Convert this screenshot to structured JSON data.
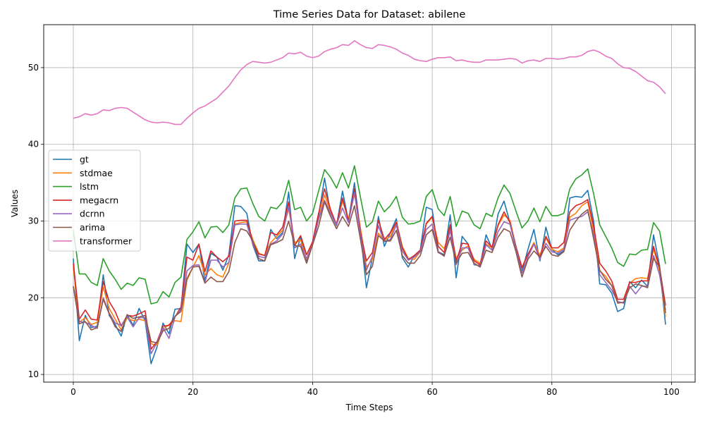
{
  "chart_data": {
    "type": "line",
    "title": "Time Series Data for Dataset: abilene",
    "xlabel": "Time Steps",
    "ylabel": "Values",
    "xlim": [
      -4.95,
      103.95
    ],
    "ylim": [
      9.0,
      55.6
    ],
    "xticks": [
      0,
      20,
      40,
      60,
      80,
      100
    ],
    "yticks": [
      10,
      20,
      30,
      40,
      50
    ],
    "grid": true,
    "legend_position": "center-left",
    "series": [
      {
        "name": "gt",
        "color": "#1f77b4",
        "values": [
          25.1,
          14.4,
          17.7,
          16.1,
          16.3,
          23.0,
          17.7,
          16.5,
          15.0,
          17.8,
          16.4,
          18.6,
          17.0,
          11.4,
          13.6,
          16.7,
          15.3,
          18.5,
          18.6,
          27.0,
          25.9,
          27.0,
          22.2,
          25.8,
          25.3,
          23.6,
          25.6,
          32.0,
          31.9,
          31.0,
          26.9,
          24.8,
          24.8,
          28.9,
          27.7,
          28.5,
          33.8,
          25.1,
          28.0,
          24.8,
          27.3,
          30.7,
          35.6,
          31.0,
          29.4,
          33.9,
          30.0,
          35.0,
          28.5,
          21.3,
          25.2,
          30.6,
          26.7,
          28.5,
          30.3,
          25.2,
          24.0,
          25.5,
          26.2,
          31.8,
          31.5,
          26.0,
          25.6,
          30.8,
          22.6,
          28.0,
          27.0,
          24.3,
          24.2,
          28.2,
          26.4,
          30.9,
          32.6,
          29.8,
          26.3,
          23.4,
          26.3,
          28.9,
          24.8,
          29.2,
          26.3,
          25.6,
          26.1,
          33.0,
          33.2,
          33.1,
          34.0,
          29.9,
          21.8,
          21.7,
          20.6,
          18.2,
          18.6,
          22.1,
          21.3,
          22.3,
          21.5,
          28.2,
          24.2,
          16.5
        ]
      },
      {
        "name": "stdmae",
        "color": "#ff7f0e",
        "values": [
          24.0,
          16.8,
          17.4,
          16.5,
          16.8,
          21.4,
          18.6,
          17.2,
          15.8,
          17.4,
          17.0,
          17.2,
          17.0,
          14.0,
          13.8,
          15.9,
          16.5,
          17.0,
          16.9,
          22.3,
          24.0,
          25.5,
          23.0,
          23.8,
          23.0,
          22.7,
          24.5,
          29.6,
          29.8,
          29.9,
          27.6,
          25.8,
          25.5,
          27.2,
          28.0,
          28.8,
          31.6,
          27.2,
          27.5,
          25.0,
          27.1,
          30.2,
          33.4,
          31.2,
          29.6,
          32.6,
          30.3,
          33.5,
          29.1,
          24.0,
          25.0,
          28.4,
          27.5,
          28.0,
          29.9,
          26.7,
          25.1,
          25.0,
          26.0,
          29.6,
          30.5,
          27.2,
          26.4,
          29.2,
          25.1,
          26.2,
          26.8,
          25.0,
          24.5,
          27.0,
          26.5,
          29.4,
          30.8,
          30.1,
          26.6,
          24.0,
          25.6,
          27.2,
          25.5,
          27.8,
          26.3,
          26.0,
          26.5,
          30.5,
          31.0,
          32.0,
          32.5,
          28.7,
          23.5,
          22.8,
          21.6,
          19.5,
          19.3,
          21.9,
          22.5,
          22.6,
          22.5,
          26.4,
          23.5,
          17.5
        ]
      },
      {
        "name": "lstm",
        "color": "#2ca02c",
        "values": [
          28.8,
          23.1,
          23.1,
          22.0,
          21.6,
          25.1,
          23.5,
          22.4,
          21.1,
          21.9,
          21.6,
          22.6,
          22.4,
          19.2,
          19.4,
          20.8,
          20.1,
          22.0,
          22.7,
          27.6,
          28.6,
          29.9,
          27.8,
          29.2,
          29.3,
          28.5,
          29.5,
          33.0,
          34.2,
          34.3,
          32.3,
          30.6,
          30.0,
          31.8,
          31.6,
          32.5,
          35.3,
          31.5,
          31.8,
          30.0,
          31.0,
          33.9,
          36.7,
          35.7,
          34.3,
          36.3,
          34.3,
          37.2,
          33.1,
          29.2,
          29.9,
          32.6,
          31.2,
          32.0,
          33.2,
          30.5,
          29.6,
          29.7,
          30.0,
          33.2,
          34.1,
          31.6,
          30.7,
          33.2,
          29.3,
          31.3,
          31.0,
          29.5,
          29.0,
          31.0,
          30.6,
          33.0,
          34.7,
          33.6,
          31.3,
          29.1,
          30.0,
          31.7,
          29.9,
          31.9,
          30.7,
          30.7,
          31.0,
          34.2,
          35.5,
          36.0,
          36.8,
          33.5,
          29.5,
          28.0,
          26.5,
          24.6,
          24.1,
          25.7,
          25.6,
          26.2,
          26.3,
          29.8,
          28.7,
          24.4
        ]
      },
      {
        "name": "megacrn",
        "color": "#d62728",
        "values": [
          24.5,
          17.2,
          18.4,
          17.2,
          17.1,
          22.1,
          19.5,
          18.2,
          16.3,
          17.7,
          17.6,
          17.9,
          18.3,
          13.3,
          14.3,
          16.3,
          16.4,
          17.5,
          18.8,
          25.3,
          24.9,
          27.0,
          23.4,
          26.1,
          25.3,
          24.7,
          25.4,
          30.0,
          30.1,
          30.1,
          27.3,
          25.7,
          25.5,
          28.5,
          28.2,
          29.2,
          32.5,
          26.8,
          28.1,
          25.6,
          27.3,
          31.0,
          34.2,
          31.5,
          29.5,
          33.0,
          30.0,
          34.2,
          28.6,
          24.8,
          25.9,
          30.1,
          27.6,
          28.5,
          29.8,
          26.5,
          25.0,
          25.5,
          26.2,
          29.7,
          30.6,
          26.7,
          25.9,
          29.5,
          24.8,
          27.1,
          27.0,
          24.8,
          24.3,
          27.4,
          26.6,
          29.5,
          31.2,
          29.8,
          26.7,
          23.9,
          25.7,
          27.0,
          25.2,
          28.0,
          26.5,
          26.5,
          27.2,
          31.2,
          32.0,
          32.3,
          32.8,
          29.3,
          24.5,
          23.5,
          22.2,
          19.8,
          19.8,
          22.0,
          22.0,
          22.2,
          22.2,
          26.7,
          24.0,
          19.0
        ]
      },
      {
        "name": "dcrnn",
        "color": "#9467bd",
        "values": [
          21.5,
          16.9,
          16.8,
          16.4,
          16.0,
          20.0,
          18.0,
          16.7,
          16.4,
          17.5,
          16.2,
          17.4,
          17.4,
          12.7,
          14.2,
          16.1,
          14.7,
          17.5,
          18.5,
          23.5,
          24.2,
          24.3,
          22.0,
          24.9,
          24.9,
          24.0,
          24.6,
          29.5,
          29.6,
          29.6,
          27.0,
          25.4,
          25.2,
          27.0,
          27.4,
          28.3,
          32.0,
          26.5,
          27.0,
          25.1,
          26.9,
          30.2,
          32.7,
          31.0,
          29.5,
          31.7,
          29.8,
          33.7,
          28.2,
          23.6,
          25.4,
          29.4,
          27.3,
          27.6,
          29.5,
          26.1,
          24.9,
          25.3,
          26.0,
          28.9,
          29.6,
          26.0,
          25.4,
          28.8,
          24.3,
          26.5,
          26.5,
          24.4,
          24.1,
          26.9,
          26.2,
          28.6,
          29.9,
          29.6,
          26.4,
          23.2,
          25.3,
          27.0,
          25.0,
          27.1,
          26.0,
          25.8,
          26.3,
          30.1,
          30.4,
          30.6,
          31.2,
          28.2,
          23.0,
          22.0,
          21.0,
          19.5,
          19.3,
          21.5,
          20.5,
          21.5,
          21.5,
          25.5,
          23.0,
          18.4
        ]
      },
      {
        "name": "arima",
        "color": "#8c564b",
        "values": [
          21.5,
          16.6,
          16.9,
          15.8,
          16.1,
          19.8,
          17.9,
          16.2,
          15.6,
          17.8,
          17.3,
          17.5,
          17.7,
          14.3,
          14.1,
          15.7,
          16.0,
          17.6,
          18.2,
          22.5,
          24.0,
          24.1,
          21.9,
          22.7,
          22.1,
          22.1,
          23.4,
          27.2,
          29.0,
          28.7,
          27.4,
          25.1,
          24.8,
          26.9,
          27.2,
          27.6,
          30.0,
          26.8,
          26.7,
          24.5,
          26.9,
          29.3,
          32.5,
          30.6,
          29.0,
          30.6,
          29.3,
          32.0,
          27.6,
          23.0,
          24.1,
          28.1,
          27.4,
          27.4,
          28.8,
          25.5,
          24.5,
          24.5,
          25.5,
          28.2,
          28.9,
          25.9,
          25.5,
          27.9,
          24.5,
          25.8,
          25.9,
          24.5,
          24.0,
          26.2,
          25.9,
          27.9,
          29.0,
          28.6,
          26.0,
          22.7,
          25.0,
          26.1,
          25.3,
          26.7,
          25.6,
          25.4,
          26.0,
          28.8,
          30.0,
          30.9,
          31.5,
          27.6,
          23.6,
          22.4,
          21.6,
          19.3,
          19.4,
          21.3,
          21.8,
          21.6,
          21.3,
          25.1,
          24.0,
          18.0
        ]
      },
      {
        "name": "transformer",
        "color": "#e377c2",
        "values": [
          43.4,
          43.6,
          44.0,
          43.8,
          44.0,
          44.5,
          44.4,
          44.7,
          44.8,
          44.7,
          44.2,
          43.7,
          43.2,
          42.9,
          42.8,
          42.9,
          42.8,
          42.6,
          42.6,
          43.4,
          44.1,
          44.7,
          45.0,
          45.5,
          46.0,
          46.8,
          47.6,
          48.7,
          49.7,
          50.4,
          50.8,
          50.7,
          50.6,
          50.7,
          51.0,
          51.3,
          51.9,
          51.8,
          52.0,
          51.5,
          51.3,
          51.5,
          52.1,
          52.4,
          52.6,
          53.0,
          52.9,
          53.5,
          53.0,
          52.6,
          52.5,
          53.0,
          52.9,
          52.7,
          52.4,
          51.9,
          51.6,
          51.1,
          50.9,
          50.8,
          51.1,
          51.3,
          51.3,
          51.4,
          50.9,
          51.0,
          50.8,
          50.7,
          50.7,
          51.0,
          51.0,
          51.0,
          51.1,
          51.2,
          51.1,
          50.6,
          50.9,
          51.0,
          50.8,
          51.2,
          51.2,
          51.1,
          51.2,
          51.4,
          51.4,
          51.6,
          52.1,
          52.3,
          52.0,
          51.5,
          51.2,
          50.5,
          50.0,
          49.9,
          49.5,
          48.9,
          48.3,
          48.1,
          47.5,
          46.6
        ]
      }
    ]
  }
}
